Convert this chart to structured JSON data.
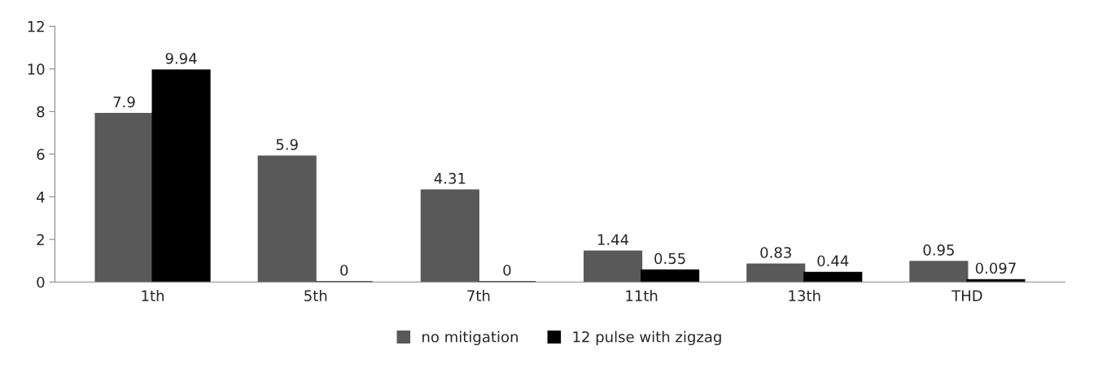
{
  "chart_data": {
    "type": "bar",
    "categories": [
      "1th",
      "5th",
      "7th",
      "11th",
      "13th",
      "THD"
    ],
    "series": [
      {
        "name": "no mitigation",
        "color": "#595959",
        "values": [
          7.9,
          5.9,
          4.31,
          1.44,
          0.83,
          0.95
        ]
      },
      {
        "name": "12 pulse with zigzag",
        "color": "#000000",
        "values": [
          9.94,
          0,
          0,
          0.55,
          0.44,
          0.097
        ]
      }
    ],
    "ylim": [
      0,
      12
    ],
    "yticks": [
      0,
      2,
      4,
      6,
      8,
      10,
      12
    ],
    "grid": false,
    "legend": "bottom",
    "data_labels": true
  }
}
